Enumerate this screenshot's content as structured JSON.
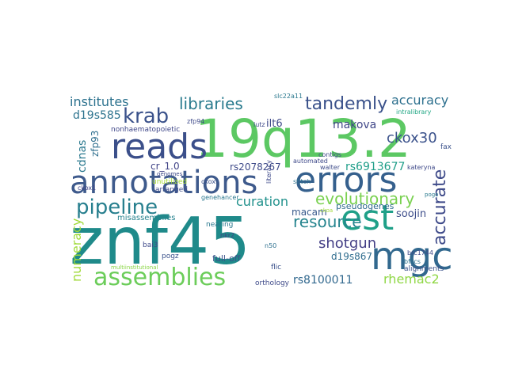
{
  "word_cloud": {
    "words": [
      {
        "text": "znf45",
        "color": "#1f8a8a",
        "name": "word-znf45"
      },
      {
        "text": "19q13.2",
        "color": "#5cc863",
        "name": "word-19q13-2"
      },
      {
        "text": "annotations",
        "color": "#3e5a8c",
        "name": "word-annotations"
      },
      {
        "text": "errors",
        "color": "#35608d",
        "name": "word-errors"
      },
      {
        "text": "reads",
        "color": "#3b4f8a",
        "name": "word-reads"
      },
      {
        "text": "mgc",
        "color": "#31688e",
        "name": "word-mgc"
      },
      {
        "text": "est",
        "color": "#1fa088",
        "name": "word-est"
      },
      {
        "text": "assemblies",
        "color": "#6ccd5a",
        "name": "word-assemblies"
      },
      {
        "text": "pipeline",
        "color": "#277f8e",
        "name": "word-pipeline"
      },
      {
        "text": "krab",
        "color": "#3b528b",
        "name": "word-krab"
      },
      {
        "text": "libraries",
        "color": "#2a7b8e",
        "name": "word-libraries"
      },
      {
        "text": "tandemly",
        "color": "#3b528b",
        "name": "word-tandemly"
      },
      {
        "text": "institutes",
        "color": "#2c728e",
        "name": "word-institutes"
      },
      {
        "text": "resource",
        "color": "#25848e",
        "name": "word-resource"
      },
      {
        "text": "accurate",
        "color": "#3e4a89",
        "name": "word-accurate"
      },
      {
        "text": "evolutionary",
        "color": "#7ad151",
        "name": "word-evolutionary"
      },
      {
        "text": "accuracy",
        "color": "#2d708e",
        "name": "word-accuracy"
      },
      {
        "text": "ckox30",
        "color": "#3b528b",
        "name": "word-ckox30"
      },
      {
        "text": "shotgun",
        "color": "#433e85",
        "name": "word-shotgun"
      },
      {
        "text": "rhemac2",
        "color": "#8fd744",
        "name": "word-rhemac2"
      },
      {
        "text": "rs6913677",
        "color": "#1f9e89",
        "name": "word-rs6913677"
      },
      {
        "text": "rs8100011",
        "color": "#31688e",
        "name": "word-rs8100011"
      },
      {
        "text": "numeracy",
        "color": "#a0da39",
        "name": "word-numeracy"
      },
      {
        "text": "curation",
        "color": "#21918c",
        "name": "word-curation"
      },
      {
        "text": "makova",
        "color": "#404688",
        "name": "word-makova"
      },
      {
        "text": "d19s585",
        "color": "#2c738e",
        "name": "word-d19s585"
      },
      {
        "text": "cdnas",
        "color": "#2a788e",
        "name": "word-cdnas"
      },
      {
        "text": "rs2078267",
        "color": "#3e4a89",
        "name": "word-rs2078267"
      },
      {
        "text": "soojin",
        "color": "#3d4d8a",
        "name": "word-soojin"
      },
      {
        "text": "macam",
        "color": "#38598c",
        "name": "word-macam"
      },
      {
        "text": "d19s867",
        "color": "#2f6c8e",
        "name": "word-d19s867"
      },
      {
        "text": "cr_1.0",
        "color": "#414487",
        "name": "word-cr-1-0"
      },
      {
        "text": "ilt6",
        "color": "#3e4989",
        "name": "word-ilt6"
      },
      {
        "text": "zfp93",
        "color": "#2e6e8e",
        "name": "word-zfp93"
      },
      {
        "text": "pseudogenes",
        "color": "#2f6b8e",
        "name": "word-pseudogenes"
      },
      {
        "text": "misassemblies",
        "color": "#26828e",
        "name": "word-misassemblies"
      },
      {
        "text": "full-off",
        "color": "#3b528b",
        "name": "word-full-off"
      },
      {
        "text": "orthology",
        "color": "#3e4a89",
        "name": "word-orthology"
      },
      {
        "text": "alignments",
        "color": "#3b528b",
        "name": "word-alignments"
      },
      {
        "text": "nonhaematopoietic",
        "color": "#3f4788",
        "name": "word-nonhaematopoietic"
      },
      {
        "text": "unutilized",
        "color": "#a5db36",
        "name": "word-unutilized"
      },
      {
        "text": "arranged",
        "color": "#3e4c8a",
        "name": "word-arranged"
      },
      {
        "text": "genehancer",
        "color": "#2a778e",
        "name": "word-genehancer"
      },
      {
        "text": "multiinstitutional",
        "color": "#8bd646",
        "name": "word-multiinstitutional"
      },
      {
        "text": "nearing",
        "color": "#2a788e",
        "name": "word-nearing"
      },
      {
        "text": "pogz",
        "color": "#3b528b",
        "name": "word-pogz"
      },
      {
        "text": "bai3",
        "color": "#3e4989",
        "name": "word-bai3"
      },
      {
        "text": "nkr2",
        "color": "#414487",
        "name": "word-nkr2"
      },
      {
        "text": "flic",
        "color": "#3b528b",
        "name": "word-flic"
      },
      {
        "text": "n50",
        "color": "#2d708e",
        "name": "word-n50"
      },
      {
        "text": "brc1744",
        "color": "#3e4a89",
        "name": "word-brc1744"
      },
      {
        "text": "bflics",
        "color": "#2c728e",
        "name": "word-bflics"
      },
      {
        "text": "pogo",
        "color": "#29798e",
        "name": "word-pogo"
      },
      {
        "text": "walter",
        "color": "#3e4c8a",
        "name": "word-walter"
      },
      {
        "text": "kateryna",
        "color": "#3e4989",
        "name": "word-kateryna"
      },
      {
        "text": "fax",
        "color": "#3b528b",
        "name": "word-fax"
      },
      {
        "text": "intralibrary",
        "color": "#22a785",
        "name": "word-intralibrary"
      },
      {
        "text": "contigs",
        "color": "#3e4a89",
        "name": "word-contigs"
      },
      {
        "text": "automated",
        "color": "#3e4989",
        "name": "word-automated"
      },
      {
        "text": "slc22a11",
        "color": "#2a788e",
        "name": "word-slc22a11"
      },
      {
        "text": "lutz",
        "color": "#3e4989",
        "name": "word-lutz"
      },
      {
        "text": "zfp94",
        "color": "#3e4989",
        "name": "word-zfp94"
      },
      {
        "text": "ckox",
        "color": "#3b528b",
        "name": "word-ckox"
      },
      {
        "text": "ckox1",
        "color": "#414487",
        "name": "word-ckox1"
      },
      {
        "text": "genomes",
        "color": "#3e4a89",
        "name": "word-genomes"
      },
      {
        "text": "literacy",
        "color": "#3e4989",
        "name": "word-literacy"
      },
      {
        "text": "stitch",
        "color": "#2c728e",
        "name": "word-stitch"
      },
      {
        "text": "ckoa",
        "color": "#a0da39",
        "name": "word-ckoa"
      }
    ]
  }
}
